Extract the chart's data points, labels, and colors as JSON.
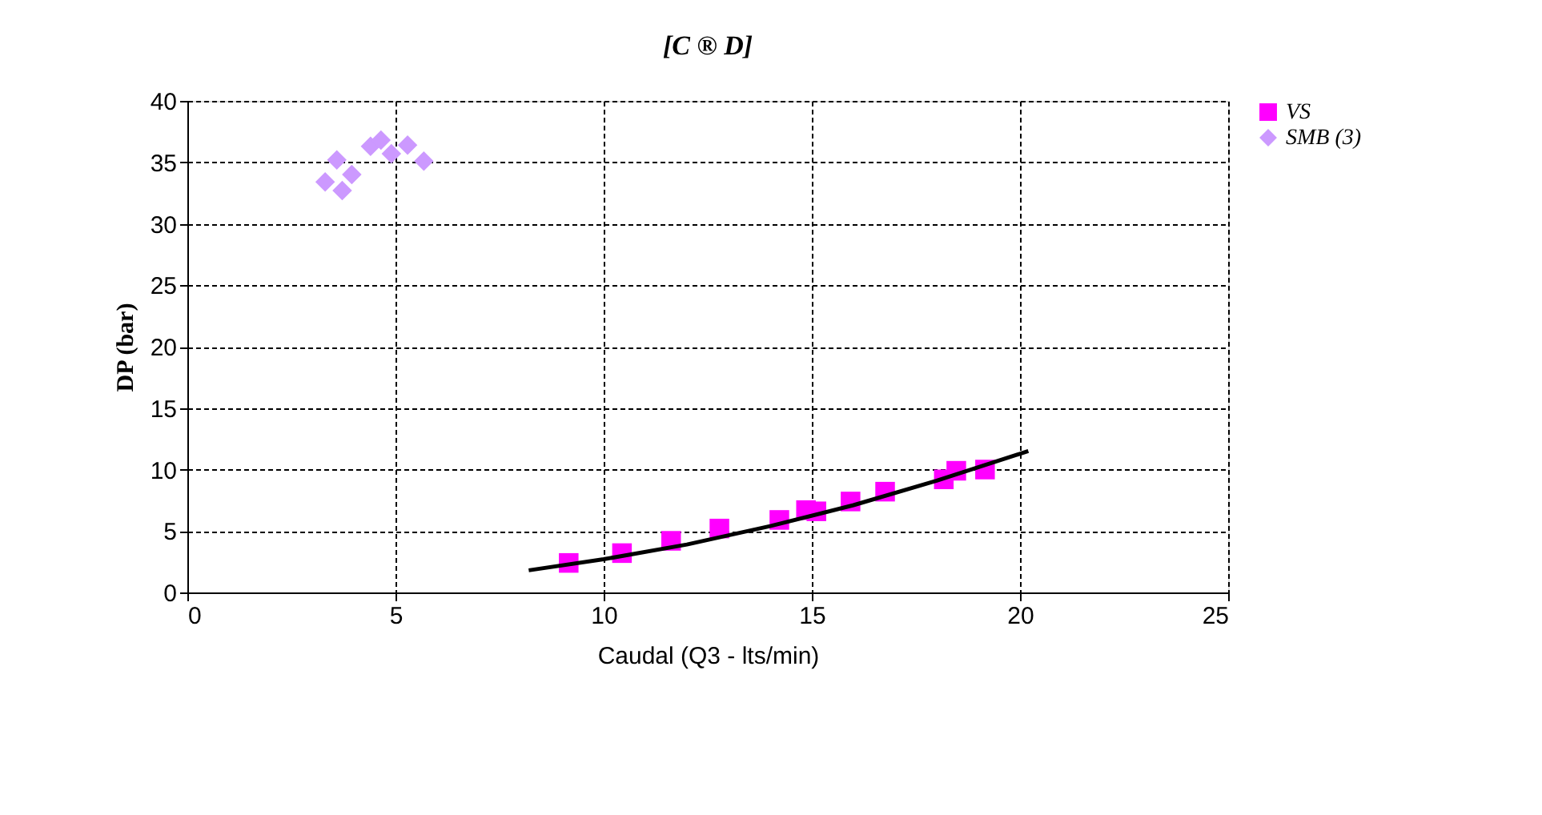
{
  "chart_data": {
    "type": "scatter",
    "title": "[C ® D]",
    "xlabel": "Caudal (Q3 - lts/min)",
    "ylabel": "DP (bar)",
    "xlim": [
      0,
      25
    ],
    "xticks": [
      0,
      5,
      10,
      15,
      20,
      25
    ],
    "ylim": [
      0,
      40
    ],
    "yticks": [
      0,
      5,
      10,
      15,
      20,
      25,
      30,
      35,
      40
    ],
    "grid": true,
    "legend": "right",
    "series": [
      {
        "name": "VS",
        "color": "#ff00ff",
        "marker": "square",
        "x": [
          9.16,
          10.44,
          11.62,
          12.78,
          14.22,
          14.86,
          15.11,
          15.93,
          16.76,
          18.17,
          18.47,
          19.16
        ],
        "values": [
          2.4,
          3.2,
          4.2,
          5.2,
          5.9,
          6.7,
          6.6,
          7.4,
          8.2,
          9.2,
          9.9,
          10.0
        ]
      },
      {
        "name": "SMB (3)",
        "color": "#cc99ff",
        "marker": "diamond",
        "x": [
          3.31,
          3.59,
          3.95,
          3.72,
          4.4,
          4.65,
          4.9,
          5.29,
          5.68
        ],
        "values": [
          33.4,
          35.2,
          34.0,
          32.7,
          36.3,
          36.8,
          35.7,
          36.4,
          35.1
        ]
      },
      {
        "type": "line",
        "color": "#000000",
        "x": [
          8.2,
          10,
          12,
          14,
          16,
          18,
          20.2
        ],
        "values": [
          1.8,
          2.7,
          3.9,
          5.4,
          7.1,
          9.1,
          11.5
        ]
      }
    ]
  }
}
